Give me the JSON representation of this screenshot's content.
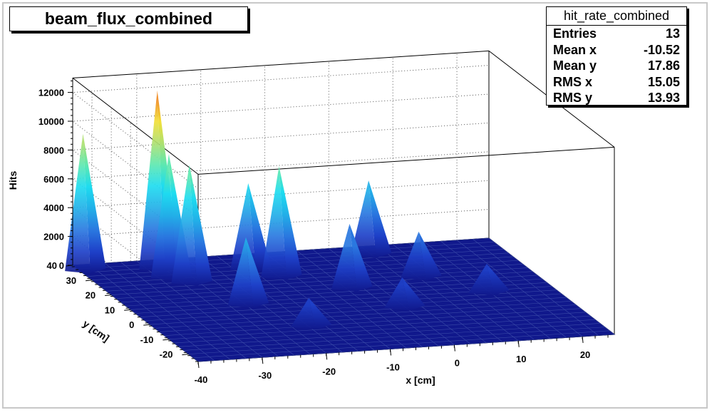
{
  "title": "beam_flux_combined",
  "stats": {
    "name": "hit_rate_combined",
    "rows": [
      {
        "label": "Entries",
        "value": "13"
      },
      {
        "label": "Mean x",
        "value": "-10.52"
      },
      {
        "label": "Mean y",
        "value": "17.86"
      },
      {
        "label": "RMS x",
        "value": "15.05"
      },
      {
        "label": "RMS y",
        "value": "13.93"
      }
    ]
  },
  "chart_data": {
    "type": "surface3d",
    "title": "beam_flux_combined",
    "xlabel": "x [cm]",
    "ylabel": "y [cm]",
    "zlabel": "Hits",
    "xlim": [
      -40,
      25
    ],
    "ylim": [
      -25,
      40
    ],
    "zlim": [
      0,
      13000
    ],
    "xticks": [
      -40,
      -30,
      -20,
      -10,
      0,
      10,
      20
    ],
    "yticks": [
      -20,
      -10,
      0,
      10,
      20,
      30,
      40
    ],
    "zticks": [
      0,
      2000,
      4000,
      6000,
      8000,
      10000,
      12000
    ],
    "grid": true,
    "colormap": [
      "#10188c",
      "#1e40c8",
      "#2a78e0",
      "#22b0e8",
      "#1edcf0",
      "#5ee8b0",
      "#aee070",
      "#f2e038",
      "#f08a20",
      "#d81e12"
    ],
    "peaks": [
      {
        "x": -39,
        "y": 38,
        "z": 9300
      },
      {
        "x": -28,
        "y": 36,
        "z": 12200
      },
      {
        "x": -28,
        "y": 30,
        "z": 8400
      },
      {
        "x": -26,
        "y": 26,
        "z": 8000
      },
      {
        "x": -15,
        "y": 32,
        "z": 5800
      },
      {
        "x": -12,
        "y": 26,
        "z": 7500
      },
      {
        "x": -22,
        "y": 10,
        "z": 4500
      },
      {
        "x": 5,
        "y": 36,
        "z": 5000
      },
      {
        "x": -4,
        "y": 16,
        "z": 4300
      },
      {
        "x": 8,
        "y": 20,
        "z": 3000
      },
      {
        "x": -17,
        "y": -6,
        "z": 1800
      },
      {
        "x": 0,
        "y": 2,
        "z": 1900
      },
      {
        "x": 15,
        "y": 8,
        "z": 1800
      }
    ]
  }
}
